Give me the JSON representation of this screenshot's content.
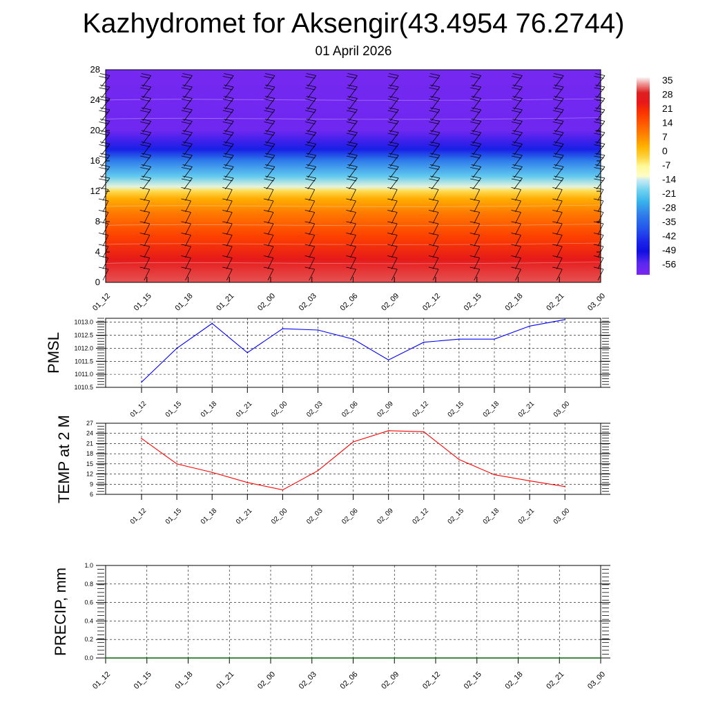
{
  "title": "Kazhydromet for Aksengir(43.4954 76.2744)",
  "subtitle": "01 April 2026",
  "colors": {
    "pmsl_line": "#0000ff",
    "temp_line": "#ff0000",
    "precip_line": "#006400",
    "grid": "#000000"
  },
  "chart_data": [
    {
      "type": "heatmap",
      "name": "vertical-temperature-wind-section",
      "x_labels": [
        "01_12",
        "01_15",
        "01_18",
        "01_21",
        "02_00",
        "02_03",
        "02_06",
        "02_09",
        "02_12",
        "02_15",
        "02_18",
        "02_21",
        "03_00"
      ],
      "y_ticks": [
        0,
        4,
        8,
        12,
        16,
        20,
        24,
        28
      ],
      "ylim": [
        0,
        28
      ],
      "colorbar_labels": [
        "35",
        "28",
        "21",
        "14",
        "7",
        "0",
        "-7",
        "-14",
        "-21",
        "-28",
        "-35",
        "-42",
        "-49",
        "-56"
      ],
      "temperature_profile": [
        {
          "level": 0,
          "value": 32
        },
        {
          "level": 3,
          "value": 26
        },
        {
          "level": 6,
          "value": 18
        },
        {
          "level": 9,
          "value": 10
        },
        {
          "level": 11,
          "value": 3
        },
        {
          "level": 12,
          "value": -4
        },
        {
          "level": 12.6,
          "value": -14
        },
        {
          "level": 14,
          "value": -22
        },
        {
          "level": 16,
          "value": -33
        },
        {
          "level": 17.5,
          "value": -48
        },
        {
          "level": 18.7,
          "value": -56
        },
        {
          "level": 20,
          "value": -62
        },
        {
          "level": 28,
          "value": -63
        }
      ]
    },
    {
      "type": "line",
      "name": "pmsl",
      "ylabel": "PMSL",
      "x": [
        "01_12",
        "01_15",
        "01_18",
        "01_21",
        "02_00",
        "02_03",
        "02_06",
        "02_09",
        "02_12",
        "02_15",
        "02_18",
        "02_21",
        "03_00"
      ],
      "values": [
        1010.7,
        1012.0,
        1012.95,
        1011.83,
        1012.75,
        1012.7,
        1012.35,
        1011.55,
        1012.23,
        1012.35,
        1012.35,
        1012.85,
        1013.1
      ],
      "y_ticks": [
        "1010.5",
        "1011.0",
        "1011.5",
        "1012.0",
        "1012.5",
        "1013.0"
      ],
      "ylim": [
        1010.5,
        1013.15
      ]
    },
    {
      "type": "line",
      "name": "temp-2m",
      "ylabel": "TEMP at 2 M",
      "x": [
        "01_12",
        "01_15",
        "01_18",
        "01_21",
        "02_00",
        "02_03",
        "02_06",
        "02_09",
        "02_12",
        "02_15",
        "02_18",
        "02_21",
        "03_00"
      ],
      "values": [
        22.5,
        15.0,
        12.5,
        9.5,
        7.3,
        13.0,
        21.5,
        24.8,
        24.5,
        16.3,
        11.8,
        10.0,
        8.3
      ],
      "y_ticks": [
        "6",
        "9",
        "12",
        "15",
        "18",
        "21",
        "24",
        "27"
      ],
      "ylim": [
        6,
        27
      ]
    },
    {
      "type": "line",
      "name": "precip",
      "ylabel": "PRECIP, mm",
      "x": [
        "01_12",
        "01_15",
        "01_18",
        "01_21",
        "02_00",
        "02_03",
        "02_06",
        "02_09",
        "02_12",
        "02_15",
        "02_18",
        "02_21",
        "03_00"
      ],
      "values": [
        0,
        0,
        0,
        0,
        0,
        0,
        0,
        0,
        0,
        0,
        0,
        0,
        0
      ],
      "y_ticks": [
        "0.0",
        "0.2",
        "0.4",
        "0.6",
        "0.8",
        "1.0"
      ],
      "ylim": [
        0,
        1
      ]
    }
  ]
}
